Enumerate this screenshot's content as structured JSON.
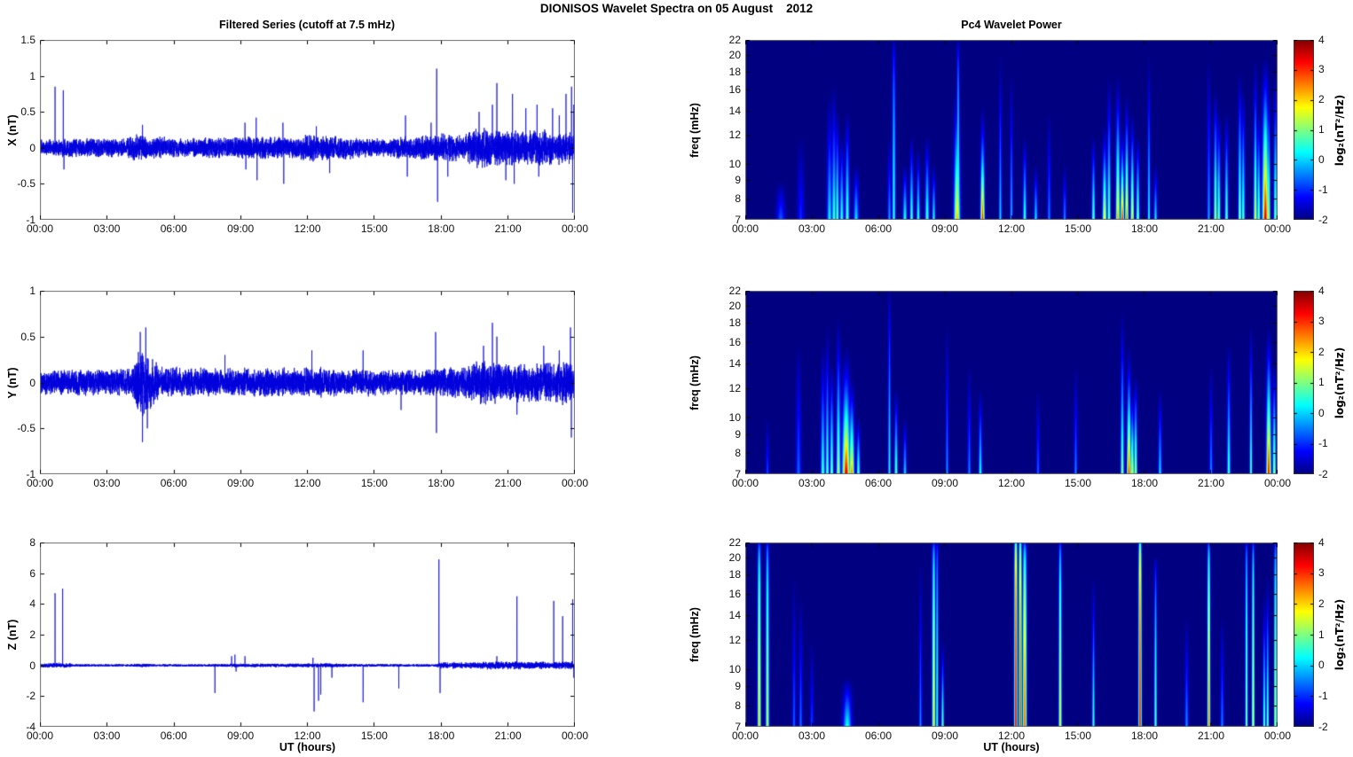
{
  "figure": {
    "title": "DIONISOS Wavelet Spectra on 05 August    2012",
    "background": "#ffffff"
  },
  "left_column": {
    "title": "Filtered Series (cutoff at 7.5 mHz)",
    "xlabel": "UT (hours)"
  },
  "right_column": {
    "title": "Pc4 Wavelet Power",
    "xlabel": "UT (hours)"
  },
  "time_axis": {
    "range_hours": [
      0,
      24
    ],
    "tick_labels": [
      "00:00",
      "03:00",
      "06:00",
      "09:00",
      "12:00",
      "15:00",
      "18:00",
      "21:00",
      "00:00"
    ]
  },
  "colorbar": {
    "label": "log₂(nT²/Hz)",
    "ticks": [
      4,
      3,
      2,
      1,
      0,
      -1,
      -2
    ],
    "range": [
      -2,
      4
    ],
    "colormap": "jet"
  },
  "chart_data": [
    {
      "id": "x-filtered",
      "type": "line",
      "ylabel": "X (nT)",
      "ylim": [
        -1,
        1.5
      ],
      "yticks": [
        1.5,
        1,
        0.5,
        0,
        -0.5,
        -1
      ],
      "color": "#0000dc",
      "noise_envelope": [
        [
          0,
          0.07
        ],
        [
          0.9,
          0.07
        ],
        [
          1.2,
          0.08
        ],
        [
          3.8,
          0.08
        ],
        [
          4.2,
          0.11
        ],
        [
          5.2,
          0.1
        ],
        [
          6,
          0.08
        ],
        [
          8.8,
          0.09
        ],
        [
          9.8,
          0.1
        ],
        [
          11.5,
          0.09
        ],
        [
          12,
          0.11
        ],
        [
          13.2,
          0.1
        ],
        [
          15.5,
          0.07
        ],
        [
          16,
          0.09
        ],
        [
          17.5,
          0.1
        ],
        [
          18.2,
          0.12
        ],
        [
          19,
          0.1
        ],
        [
          19.6,
          0.17
        ],
        [
          20.8,
          0.16
        ],
        [
          21.5,
          0.14
        ],
        [
          22.5,
          0.15
        ],
        [
          23.5,
          0.14
        ],
        [
          24,
          0.12
        ]
      ],
      "spikes": [
        [
          0.68,
          0.85
        ],
        [
          1.05,
          0.8
        ],
        [
          1.08,
          -0.3
        ],
        [
          4.6,
          0.32
        ],
        [
          9.2,
          0.35
        ],
        [
          9.24,
          -0.3
        ],
        [
          9.7,
          0.42
        ],
        [
          9.74,
          -0.45
        ],
        [
          10.9,
          0.35
        ],
        [
          10.94,
          -0.5
        ],
        [
          12.4,
          0.3
        ],
        [
          13.0,
          -0.35
        ],
        [
          16.4,
          0.45
        ],
        [
          16.48,
          -0.4
        ],
        [
          17.55,
          0.35
        ],
        [
          17.8,
          1.1
        ],
        [
          17.84,
          -0.75
        ],
        [
          18.3,
          -0.4
        ],
        [
          19.7,
          0.5
        ],
        [
          20.3,
          0.6
        ],
        [
          20.5,
          0.9
        ],
        [
          20.9,
          -0.45
        ],
        [
          21.2,
          0.75
        ],
        [
          21.28,
          -0.5
        ],
        [
          21.8,
          0.55
        ],
        [
          22.3,
          0.6
        ],
        [
          22.38,
          -0.4
        ],
        [
          23.0,
          0.55
        ],
        [
          23.3,
          0.45
        ],
        [
          23.6,
          0.75
        ],
        [
          23.85,
          0.85
        ],
        [
          23.9,
          -0.9
        ],
        [
          23.95,
          0.6
        ]
      ]
    },
    {
      "id": "y-filtered",
      "type": "line",
      "ylabel": "Y (nT)",
      "ylim": [
        -1,
        1
      ],
      "yticks": [
        1,
        0.5,
        0,
        -0.5,
        -1
      ],
      "color": "#0000dc",
      "noise_envelope": [
        [
          0,
          0.08
        ],
        [
          4.1,
          0.09
        ],
        [
          4.35,
          0.2
        ],
        [
          4.7,
          0.22
        ],
        [
          5.1,
          0.16
        ],
        [
          5.4,
          0.1
        ],
        [
          8,
          0.09
        ],
        [
          12,
          0.1
        ],
        [
          14,
          0.09
        ],
        [
          17,
          0.08
        ],
        [
          19,
          0.11
        ],
        [
          19.8,
          0.14
        ],
        [
          21,
          0.13
        ],
        [
          22,
          0.13
        ],
        [
          23.5,
          0.14
        ],
        [
          24,
          0.13
        ]
      ],
      "spikes": [
        [
          4.5,
          0.55
        ],
        [
          4.6,
          -0.65
        ],
        [
          4.75,
          0.6
        ],
        [
          4.82,
          -0.5
        ],
        [
          8.3,
          0.3
        ],
        [
          12.2,
          0.35
        ],
        [
          14.5,
          0.35
        ],
        [
          16.2,
          -0.3
        ],
        [
          17.75,
          0.55
        ],
        [
          17.79,
          -0.55
        ],
        [
          19.9,
          0.4
        ],
        [
          20.3,
          0.65
        ],
        [
          20.5,
          0.5
        ],
        [
          21.4,
          -0.35
        ],
        [
          22.6,
          0.4
        ],
        [
          23.3,
          0.35
        ],
        [
          23.8,
          0.6
        ],
        [
          23.84,
          -0.6
        ]
      ]
    },
    {
      "id": "z-filtered",
      "type": "line",
      "ylabel": "Z (nT)",
      "ylim": [
        -4,
        8
      ],
      "yticks": [
        8,
        6,
        4,
        2,
        0,
        -2,
        -4
      ],
      "color": "#0000dc",
      "noise_envelope": [
        [
          0,
          0.06
        ],
        [
          0.5,
          0.1
        ],
        [
          1.3,
          0.1
        ],
        [
          1.5,
          0.05
        ],
        [
          4,
          0.05
        ],
        [
          4.6,
          0.08
        ],
        [
          5,
          0.05
        ],
        [
          7.5,
          0.05
        ],
        [
          8.5,
          0.07
        ],
        [
          12,
          0.08
        ],
        [
          13,
          0.08
        ],
        [
          14,
          0.06
        ],
        [
          17.7,
          0.05
        ],
        [
          18,
          0.12
        ],
        [
          19.5,
          0.13
        ],
        [
          20.5,
          0.18
        ],
        [
          21.5,
          0.15
        ],
        [
          23,
          0.15
        ],
        [
          24,
          0.15
        ]
      ],
      "spikes": [
        [
          0.68,
          4.7
        ],
        [
          1.02,
          5.0
        ],
        [
          7.85,
          -1.8
        ],
        [
          8.6,
          0.6
        ],
        [
          8.75,
          0.7
        ],
        [
          8.8,
          -0.4
        ],
        [
          9.2,
          0.6
        ],
        [
          12.25,
          0.5
        ],
        [
          12.3,
          -3.0
        ],
        [
          12.5,
          -2.3
        ],
        [
          12.6,
          -1.9
        ],
        [
          13.1,
          -0.8
        ],
        [
          14.5,
          -2.4
        ],
        [
          16.1,
          -1.5
        ],
        [
          17.9,
          6.9
        ],
        [
          17.95,
          -1.8
        ],
        [
          20.5,
          0.6
        ],
        [
          21.4,
          4.5
        ],
        [
          23.05,
          4.2
        ],
        [
          23.45,
          3.2
        ],
        [
          23.9,
          4.3
        ],
        [
          23.95,
          -0.8
        ]
      ]
    },
    {
      "id": "x-wavelet",
      "type": "heatmap",
      "ylabel": "freq (mHz)",
      "yscale": "log",
      "ylim": [
        7,
        22
      ],
      "yticks": [
        22,
        20,
        18,
        16,
        14,
        12,
        10,
        9,
        8,
        7
      ],
      "zlim": [
        -2,
        4
      ],
      "background_value": -2,
      "streak_format": [
        "t_hours",
        "width_hours",
        "f_top_mHz",
        "peak_log2_power",
        "vertical_fade_exp"
      ],
      "streaks": [
        [
          1.6,
          0.25,
          9,
          -0.7,
          1
        ],
        [
          2.5,
          0.2,
          12,
          -1,
          1
        ],
        [
          3.8,
          0.15,
          16,
          0.3,
          1.2
        ],
        [
          4.0,
          0.12,
          17,
          0.8,
          1.2
        ],
        [
          4.15,
          0.1,
          14,
          1.0,
          1
        ],
        [
          4.35,
          0.12,
          12,
          0.6,
          1
        ],
        [
          4.6,
          0.12,
          14,
          0.9,
          1
        ],
        [
          5.0,
          0.15,
          10,
          0.2,
          1
        ],
        [
          6.5,
          0.1,
          12,
          -0.2,
          1
        ],
        [
          6.7,
          0.1,
          22,
          0.6,
          0.5
        ],
        [
          7.2,
          0.12,
          10,
          0.6,
          1
        ],
        [
          7.5,
          0.1,
          12,
          0.9,
          1
        ],
        [
          7.8,
          0.1,
          11,
          0.7,
          1
        ],
        [
          8.2,
          0.12,
          12,
          0.8,
          1
        ],
        [
          8.5,
          0.1,
          10,
          0.5,
          1
        ],
        [
          9.55,
          0.18,
          17,
          2.3,
          1.3
        ],
        [
          9.6,
          0.08,
          22,
          1.0,
          0.5
        ],
        [
          10.7,
          0.12,
          15,
          3.2,
          1.5
        ],
        [
          11.5,
          0.08,
          20,
          0.2,
          1
        ],
        [
          12.0,
          0.08,
          18,
          0.0,
          1
        ],
        [
          12.6,
          0.1,
          12,
          0.8,
          1
        ],
        [
          13.1,
          0.1,
          10,
          0.3,
          1
        ],
        [
          13.7,
          0.1,
          14,
          -0.4,
          1
        ],
        [
          14.4,
          0.1,
          10,
          -0.3,
          1
        ],
        [
          15.7,
          0.1,
          12,
          1.0,
          1
        ],
        [
          16.2,
          0.12,
          13,
          2.0,
          1.2
        ],
        [
          16.4,
          0.1,
          18,
          1.2,
          1.2
        ],
        [
          16.8,
          0.12,
          18,
          2.5,
          1.3
        ],
        [
          17.0,
          0.1,
          13,
          3.3,
          1.4
        ],
        [
          17.2,
          0.1,
          16,
          2.8,
          1.3
        ],
        [
          17.45,
          0.1,
          14,
          2.2,
          1.2
        ],
        [
          17.7,
          0.1,
          12,
          1.2,
          1
        ],
        [
          18.2,
          0.08,
          20,
          0.5,
          1
        ],
        [
          18.5,
          0.1,
          10,
          0.3,
          1
        ],
        [
          20.9,
          0.1,
          20,
          -0.2,
          1
        ],
        [
          21.2,
          0.1,
          16,
          1.5,
          1
        ],
        [
          21.35,
          0.1,
          14,
          1.2,
          1
        ],
        [
          21.7,
          0.1,
          14,
          1.0,
          1
        ],
        [
          22.3,
          0.1,
          18,
          1.3,
          1
        ],
        [
          22.45,
          0.1,
          16,
          1.0,
          1
        ],
        [
          23.0,
          0.1,
          20,
          1.8,
          1.2
        ],
        [
          23.15,
          0.1,
          14,
          1.2,
          1
        ],
        [
          23.45,
          0.18,
          20,
          3.6,
          1.2
        ],
        [
          23.6,
          0.1,
          16,
          1.5,
          1
        ],
        [
          23.9,
          0.1,
          18,
          1.1,
          1
        ]
      ]
    },
    {
      "id": "y-wavelet",
      "type": "heatmap",
      "ylabel": "freq (mHz)",
      "yscale": "log",
      "ylim": [
        7,
        22
      ],
      "yticks": [
        22,
        20,
        18,
        16,
        14,
        12,
        10,
        9,
        8,
        7
      ],
      "zlim": [
        -2,
        4
      ],
      "background_value": -2,
      "streak_format": [
        "t_hours",
        "width_hours",
        "f_top_mHz",
        "peak_log2_power",
        "vertical_fade_exp"
      ],
      "streaks": [
        [
          1.0,
          0.1,
          10,
          -0.8,
          1
        ],
        [
          2.4,
          0.15,
          16,
          -0.6,
          1
        ],
        [
          3.5,
          0.12,
          16,
          0.8,
          1.2
        ],
        [
          3.7,
          0.1,
          18,
          1.0,
          1.2
        ],
        [
          3.9,
          0.1,
          14,
          1.2,
          1
        ],
        [
          4.2,
          0.12,
          19,
          1.5,
          1.2
        ],
        [
          4.55,
          0.22,
          16,
          3.6,
          1.5
        ],
        [
          4.8,
          0.15,
          13,
          2.6,
          1.3
        ],
        [
          5.1,
          0.1,
          10,
          1.0,
          1
        ],
        [
          6.5,
          0.08,
          22,
          0.4,
          0.7
        ],
        [
          6.8,
          0.1,
          12,
          1.0,
          1
        ],
        [
          7.2,
          0.1,
          10,
          0.2,
          1
        ],
        [
          9.1,
          0.08,
          18,
          -0.2,
          1
        ],
        [
          10.1,
          0.1,
          14,
          -0.4,
          1
        ],
        [
          10.6,
          0.1,
          12,
          0.5,
          1
        ],
        [
          13.2,
          0.1,
          12,
          -0.6,
          1
        ],
        [
          14.9,
          0.1,
          14,
          -0.4,
          1
        ],
        [
          17.0,
          0.1,
          20,
          1.3,
          1.2
        ],
        [
          17.3,
          0.12,
          16,
          3.2,
          1.4
        ],
        [
          17.45,
          0.1,
          12,
          2.0,
          1.2
        ],
        [
          17.6,
          0.1,
          13,
          1.5,
          1
        ],
        [
          18.7,
          0.1,
          12,
          0.2,
          1
        ],
        [
          21.0,
          0.1,
          14,
          -0.3,
          1
        ],
        [
          21.8,
          0.1,
          16,
          0.8,
          1
        ],
        [
          22.8,
          0.08,
          18,
          1.0,
          1
        ],
        [
          23.6,
          0.14,
          18,
          3.4,
          1.3
        ],
        [
          23.85,
          0.1,
          14,
          1.5,
          1
        ]
      ]
    },
    {
      "id": "z-wavelet",
      "type": "heatmap",
      "ylabel": "freq (mHz)",
      "yscale": "log",
      "ylim": [
        7,
        22
      ],
      "yticks": [
        22,
        20,
        18,
        16,
        14,
        12,
        10,
        9,
        8,
        7
      ],
      "zlim": [
        -2,
        4
      ],
      "background_value": -2,
      "streak_format": [
        "t_hours",
        "width_hours",
        "f_top_mHz",
        "peak_log2_power",
        "vertical_fade_exp"
      ],
      "streaks": [
        [
          0.63,
          0.1,
          22,
          2.2,
          0.3
        ],
        [
          1.0,
          0.1,
          22,
          1.5,
          0.3
        ],
        [
          2.2,
          0.1,
          18,
          -0.6,
          1
        ],
        [
          2.5,
          0.1,
          16,
          -0.5,
          1
        ],
        [
          3.0,
          0.1,
          12,
          -0.8,
          1
        ],
        [
          4.6,
          0.25,
          9.5,
          0.4,
          1
        ],
        [
          7.9,
          0.08,
          20,
          -0.3,
          1
        ],
        [
          8.5,
          0.1,
          22,
          2.0,
          0.3
        ],
        [
          8.65,
          0.08,
          22,
          0.6,
          0.3
        ],
        [
          8.9,
          0.08,
          12,
          1.0,
          1
        ],
        [
          12.2,
          0.09,
          22,
          3.6,
          0.15
        ],
        [
          12.4,
          0.09,
          22,
          3.2,
          0.15
        ],
        [
          12.6,
          0.12,
          22,
          2.8,
          0.3
        ],
        [
          14.2,
          0.09,
          22,
          1.8,
          0.3
        ],
        [
          15.7,
          0.08,
          18,
          0.8,
          1
        ],
        [
          17.8,
          0.09,
          22,
          3.4,
          0.15
        ],
        [
          18.5,
          0.08,
          20,
          1.0,
          0.5
        ],
        [
          19.9,
          0.1,
          14,
          -0.3,
          1
        ],
        [
          20.9,
          0.09,
          22,
          2.6,
          0.3
        ],
        [
          21.5,
          0.1,
          14,
          -0.4,
          1
        ],
        [
          22.6,
          0.08,
          22,
          1.2,
          0.3
        ],
        [
          22.9,
          0.08,
          22,
          1.8,
          0.3
        ],
        [
          23.4,
          0.08,
          16,
          1.0,
          1
        ],
        [
          23.55,
          0.08,
          18,
          1.1,
          1
        ],
        [
          23.9,
          0.08,
          22,
          1.6,
          0.3
        ]
      ]
    }
  ]
}
